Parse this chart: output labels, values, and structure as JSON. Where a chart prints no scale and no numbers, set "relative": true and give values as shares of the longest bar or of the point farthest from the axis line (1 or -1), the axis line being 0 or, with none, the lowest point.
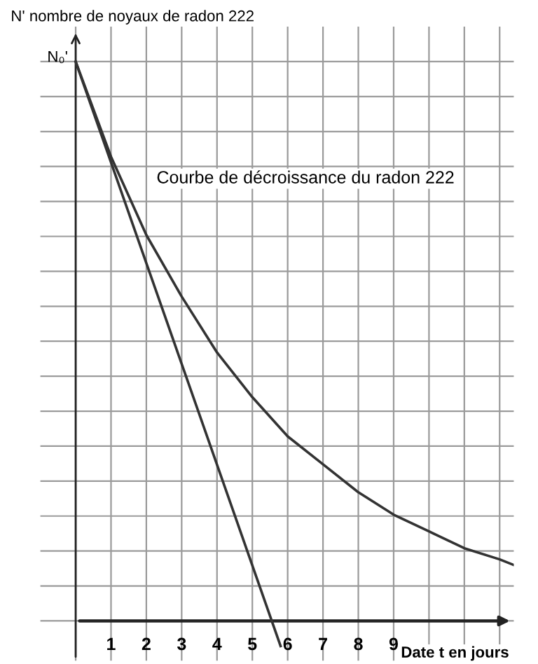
{
  "chart_data": {
    "type": "line",
    "relative": true,
    "ylabel": "N' nombre de noyaux de radon 222",
    "xlabel": "Date t en jours",
    "annotations": [
      {
        "text": "N₀'",
        "x": 0,
        "y": 1
      },
      "Courbe de décroissance du radon 222"
    ],
    "xlim": [
      -1,
      12.4
    ],
    "xticks": [
      {
        "value": 0,
        "label": null
      },
      1,
      2,
      3,
      4,
      5,
      6,
      7,
      8,
      9,
      {
        "value": 10,
        "label": null
      },
      {
        "value": 11,
        "label": null
      },
      {
        "value": 12,
        "label": null
      }
    ],
    "grid": true,
    "marker": "none",
    "line_style": "solid",
    "series": [
      {
        "color": "#333333",
        "x": [
          0,
          1,
          2,
          3,
          4,
          5,
          6,
          7,
          8,
          9,
          10,
          11,
          12,
          12.4
        ],
        "values": [
          1,
          0.83,
          0.69,
          0.58,
          0.48,
          0.4,
          0.33,
          0.28,
          0.23,
          0.19,
          0.16,
          0.13,
          0.11,
          0.1
        ]
      },
      {
        "color": "#333333",
        "x": [
          0,
          5.8
        ],
        "values": [
          1,
          -0.045
        ]
      }
    ]
  }
}
